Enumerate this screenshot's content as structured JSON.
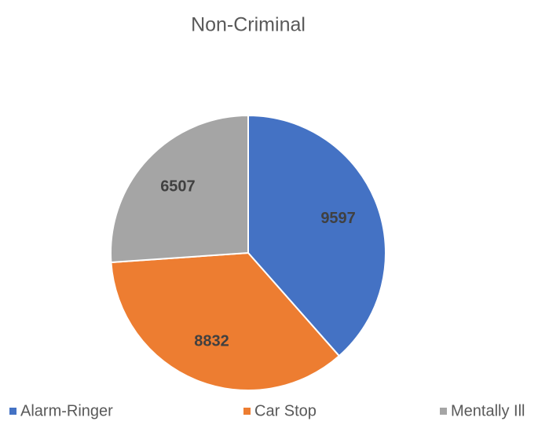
{
  "chart_data": {
    "type": "pie",
    "title": "Non-Criminal",
    "categories": [
      "Alarm-Ringer",
      "Car Stop",
      "Mentally Ill"
    ],
    "values": [
      9597,
      8832,
      6507
    ],
    "colors": [
      "#4472c4",
      "#ed7d31",
      "#a5a5a5"
    ],
    "legend": "bottom"
  }
}
